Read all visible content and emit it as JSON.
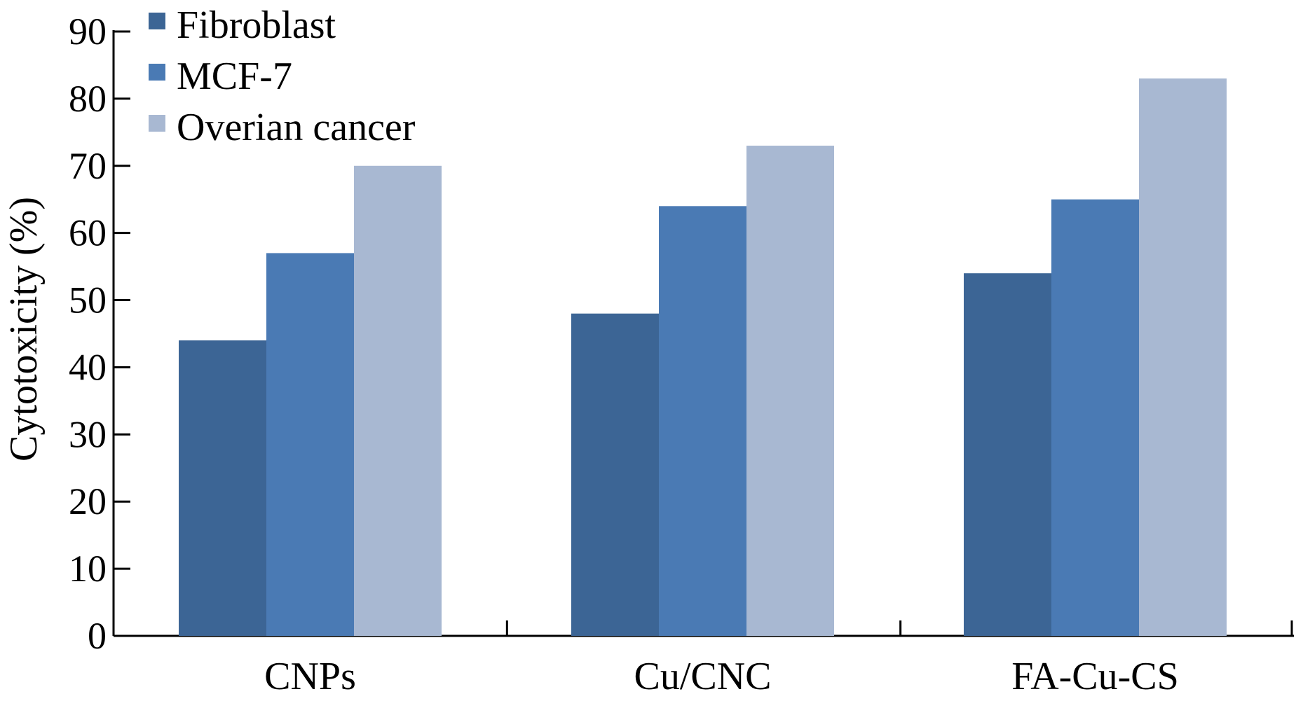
{
  "chart_data": {
    "type": "bar",
    "title": "",
    "xlabel": "",
    "ylabel": "Cytotoxicity (%)",
    "categories": [
      "CNPs",
      "Cu/CNC",
      "FA-Cu-CS"
    ],
    "series": [
      {
        "name": "Fibroblast",
        "color": "#3c6595",
        "values": [
          44,
          48,
          54
        ]
      },
      {
        "name": "MCF-7",
        "color": "#4a7ab4",
        "values": [
          57,
          64,
          65
        ]
      },
      {
        "name": "Overian cancer",
        "color": "#a8b8d2",
        "values": [
          70,
          73,
          83
        ]
      }
    ],
    "ylim": [
      0,
      90
    ],
    "yticks": [
      0,
      10,
      20,
      30,
      40,
      50,
      60,
      70,
      80,
      90
    ],
    "grid": false,
    "legend_position": "top-left"
  }
}
